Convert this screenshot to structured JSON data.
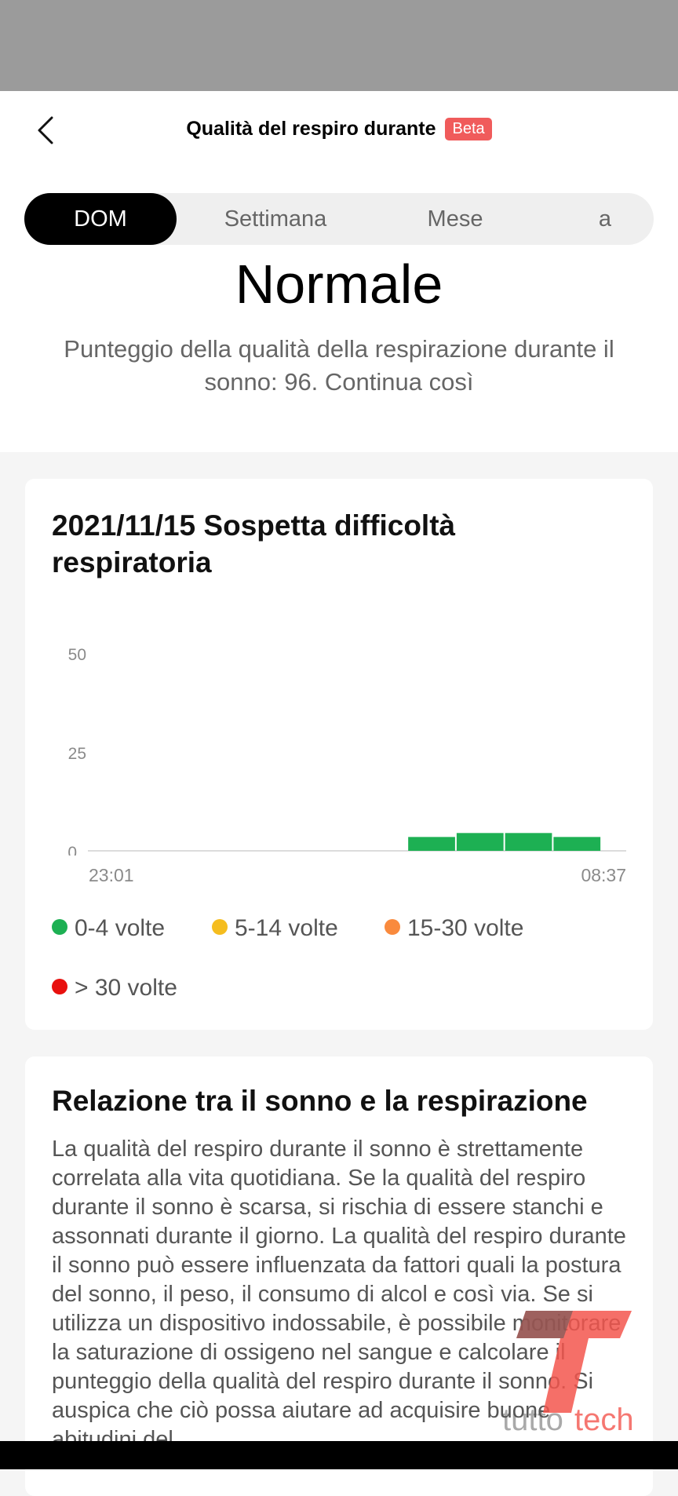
{
  "header": {
    "title": "Qualità del respiro durante",
    "badge": "Beta",
    "badge_color": "#f05b5b"
  },
  "tabs": [
    {
      "label": "DOM",
      "active": true
    },
    {
      "label": "Settimana",
      "active": false
    },
    {
      "label": "Mese",
      "active": false
    },
    {
      "label": "a",
      "active": false
    }
  ],
  "summary": {
    "status": "Normale",
    "description": "Punteggio della qualità della respirazione durante il sonno: 96. Continua così"
  },
  "chart_card": {
    "title": "2021/11/15 Sospetta difficoltà respiratoria"
  },
  "chart_data": {
    "type": "bar",
    "title": "",
    "xlabel": "",
    "ylabel": "",
    "ylim": [
      0,
      50
    ],
    "yticks": [
      "0",
      "25",
      "50"
    ],
    "x_start_label": "23:01",
    "x_end_label": "08:37",
    "bar_color": "#1db053",
    "bars": [
      {
        "from": 0.595,
        "to": 0.685,
        "value": 3.5
      },
      {
        "from": 0.685,
        "to": 0.775,
        "value": 4.5
      },
      {
        "from": 0.775,
        "to": 0.865,
        "value": 4.5
      },
      {
        "from": 0.865,
        "to": 0.955,
        "value": 3.5
      }
    ],
    "legend": [
      {
        "label": "0-4 volte",
        "color": "#1db053"
      },
      {
        "label": "5-14 volte",
        "color": "#f5bd1f"
      },
      {
        "label": "15-30 volte",
        "color": "#f98a3d"
      },
      {
        "label": "> 30 volte",
        "color": "#e8100e"
      }
    ]
  },
  "info_card": {
    "title": "Relazione tra il sonno e la respirazione",
    "body": "La qualità del respiro durante il sonno è strettamente correlata alla vita quotidiana. Se la qualità del respiro durante il sonno è scarsa, si rischia di essere stanchi e assonnati durante il giorno. La qualità del respiro durante il sonno può essere influenzata da fattori quali la postura del sonno, il peso, il consumo di alcol e così via. Se si utilizza un dispositivo indossabile, è possibile monitorare la saturazione di ossigeno nel sangue e calcolare il punteggio della qualità del respiro durante il sonno. Si auspica che ciò possa aiutare ad acquisire buone abitudini del"
  },
  "watermark": "tuttotech"
}
